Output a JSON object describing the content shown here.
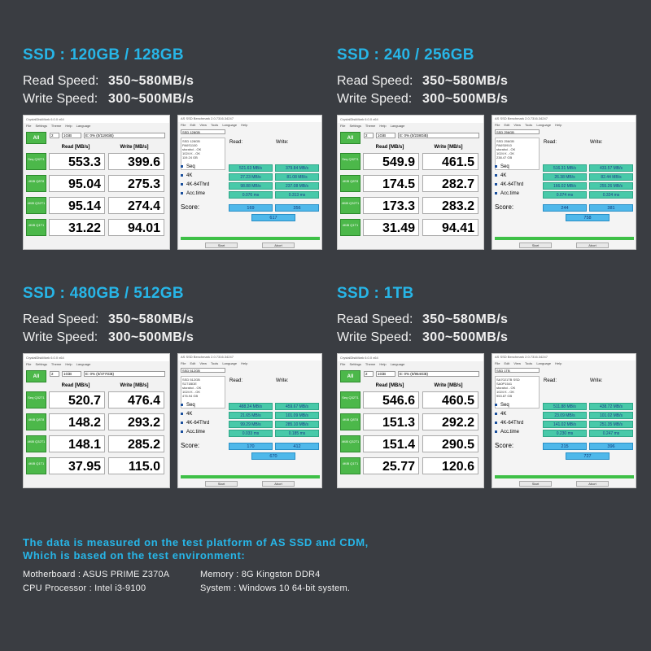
{
  "labels": {
    "read": "Read Speed:",
    "write": "Write Speed:",
    "cdm_title": "CrystalDiskMark 6.0.0 x64",
    "cdm_menu": [
      "File",
      "Settings",
      "Theme",
      "Help",
      "Language"
    ],
    "cdm_all": "All",
    "cdm_read_hdr": "Read [MB/s]",
    "cdm_write_hdr": "Write [MB/s]",
    "cdm_count": "2",
    "cdm_size": "1GiB",
    "cdm_rows": [
      "Seq Q32T1",
      "4KiB Q8T8",
      "4KiB Q32T1",
      "4KiB Q1T1"
    ],
    "asd_title": "AS SSD Benchmark 2.0.7316.34247",
    "asd_menu": [
      "File",
      "Edit",
      "View",
      "Tools",
      "Language",
      "Help"
    ],
    "asd_read": "Read:",
    "asd_write": "Write:",
    "asd_rows": [
      "Seq",
      "4K",
      "4K-64Thrd",
      "Acc.time"
    ],
    "asd_score": "Score:",
    "asd_start": "Start",
    "asd_abort": "Abort"
  },
  "panels": [
    {
      "title": "SSD : 120GB / 128GB",
      "read_speed": "350~580MB/s",
      "write_speed": "300~500MB/s",
      "cdm_drive": "E: 0% (0/119GiB)",
      "cdm_read": [
        "553.3",
        "95.04",
        "95.14",
        "31.22"
      ],
      "cdm_write": [
        "399.6",
        "275.3",
        "274.4",
        "94.01"
      ],
      "asd_drive": "SSD 128GB",
      "asd_info": "SSD 128GB\nPA0S1100\nstorahci - OK\n1024 K - OK\n119.24 GB",
      "asd_read": [
        "521.63 MB/s",
        "27.23 MB/s",
        "98.88 MB/s",
        "0.076 ms"
      ],
      "asd_write": [
        "379.84 MB/s",
        "81.08 MB/s",
        "237.08 MB/s",
        "0.313 ms"
      ],
      "asd_score_read": "169",
      "asd_score_write": "356",
      "asd_total": "617"
    },
    {
      "title": "SSD : 240 / 256GB",
      "read_speed": "350~580MB/s",
      "write_speed": "300~500MB/s",
      "cdm_drive": "E: 0% (0/238GiB)",
      "cdm_read": [
        "549.9",
        "174.5",
        "173.3",
        "31.49"
      ],
      "cdm_write": [
        "461.5",
        "282.7",
        "283.2",
        "94.41"
      ],
      "asd_drive": "SSD 256GB",
      "asd_info": "SSD 256GB\nPA0S0910\nstorahci - OK\n1024 K - OK\n238.47 GB",
      "asd_read": [
        "516.31 MB/s",
        "26.38 MB/s",
        "166.02 MB/s",
        "0.074 ms"
      ],
      "asd_write": [
        "433.57 MB/s",
        "82.44 MB/s",
        "255.26 MB/s",
        "0.324 ms"
      ],
      "asd_score_read": "244",
      "asd_score_write": "381",
      "asd_total": "758"
    },
    {
      "title": "SSD : 480GB / 512GB",
      "read_speed": "350~580MB/s",
      "write_speed": "300~500MB/s",
      "cdm_drive": "E: 0% (0/477GiB)",
      "cdm_read": [
        "520.7",
        "148.2",
        "148.1",
        "37.95"
      ],
      "cdm_write": [
        "476.4",
        "293.2",
        "285.2",
        "115.0"
      ],
      "asd_drive": "SSD 512GB",
      "asd_info": "SSD 512GB\nS1T1BDE\nstorahci - OK\n1024 K - OK\n476.94 GB",
      "asd_read": [
        "488.24 MB/s",
        "21.65 MB/s",
        "99.29 MB/s",
        "0.033 ms"
      ],
      "asd_write": [
        "459.67 MB/s",
        "101.09 MB/s",
        "285.10 MB/s",
        "0.185 ms"
      ],
      "asd_score_read": "170",
      "asd_score_write": "412",
      "asd_total": "670"
    },
    {
      "title": "SSD : 1TB",
      "read_speed": "350~580MB/s",
      "write_speed": "300~500MB/s",
      "cdm_drive": "E: 0% (0/954GiB)",
      "cdm_read": [
        "546.6",
        "151.3",
        "151.4",
        "25.77"
      ],
      "cdm_write": [
        "460.5",
        "292.2",
        "290.5",
        "120.6"
      ],
      "asd_drive": "SSD 1TB",
      "asd_info": "SA7021TB SSD\nSA0P1541\nstorahci - OK\n1024 K - OK\n953.87 GB",
      "asd_read": [
        "511.88 MB/s",
        "23.09 MB/s",
        "141.02 MB/s",
        "0.230 ms"
      ],
      "asd_write": [
        "438.72 MB/s",
        "101.02 MB/s",
        "251.35 MB/s",
        "0.247 ms"
      ],
      "asd_score_read": "215",
      "asd_score_write": "396",
      "asd_total": "727"
    }
  ],
  "footer": {
    "note_line1": "The data is measured on the test platform of AS SSD and CDM,",
    "note_line2": "Which is based on the test environment:",
    "motherboard": "Motherboard : ASUS PRIME Z370A",
    "cpu": "CPU Processor : Intel i3-9100",
    "memory": "Memory : 8G Kingston DDR4",
    "system": "System : Windows 10 64-bit system."
  },
  "colors": {
    "background": "#3a3d42",
    "accent": "#27b6e8",
    "cdm_green": "#4cb84a",
    "asd_bar": "#48c9a9",
    "asd_score": "#4fb8ea"
  }
}
